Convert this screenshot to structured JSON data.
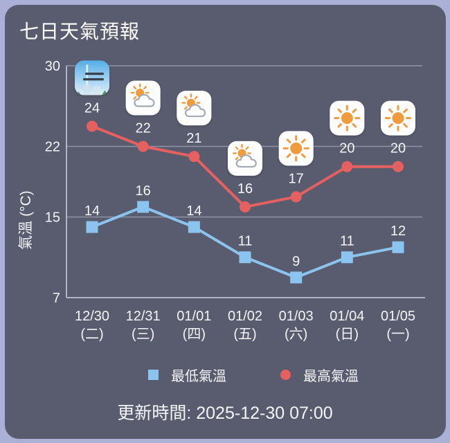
{
  "title": "七日天氣預報",
  "chart_data": {
    "type": "line",
    "title": "七日天氣預報",
    "ylabel": "氣溫 (°C)",
    "ylim": [
      7,
      30
    ],
    "yticks": [
      30,
      22,
      15,
      7
    ],
    "grid": true,
    "legend_position": "bottom",
    "categories": [
      {
        "date": "12/30",
        "weekday": "(二)"
      },
      {
        "date": "12/31",
        "weekday": "(三)"
      },
      {
        "date": "01/01",
        "weekday": "(四)"
      },
      {
        "date": "01/02",
        "weekday": "(五)"
      },
      {
        "date": "01/03",
        "weekday": "(六)"
      },
      {
        "date": "01/04",
        "weekday": "(日)"
      },
      {
        "date": "01/05",
        "weekday": "(一)"
      }
    ],
    "icons": [
      "fog",
      "partly-cloudy",
      "partly-cloudy",
      "partly-cloudy",
      "sunny",
      "sunny",
      "sunny"
    ],
    "series": [
      {
        "name": "最高氣溫",
        "values": [
          24,
          22,
          21,
          16,
          17,
          20,
          20
        ],
        "color": "#e56060",
        "marker": "circle"
      },
      {
        "name": "最低氣溫",
        "values": [
          14,
          16,
          14,
          11,
          9,
          11,
          12
        ],
        "color": "#8bc4ee",
        "marker": "square"
      }
    ]
  },
  "legend": {
    "min_label": "最低氣溫",
    "max_label": "最高氣溫",
    "min_color": "#8bc4ee",
    "max_color": "#e56060"
  },
  "footer": {
    "update_text": "更新時間: 2025-12-30 07:00"
  },
  "colors": {
    "panel_bg": "#595c6e",
    "outer_bg": "#aab0d6",
    "text": "#f4f5f8",
    "grid": "#8f93a4",
    "axis": "#b2b6c4",
    "sun": "#f09b3d",
    "fog_bar": "#3a4250"
  }
}
